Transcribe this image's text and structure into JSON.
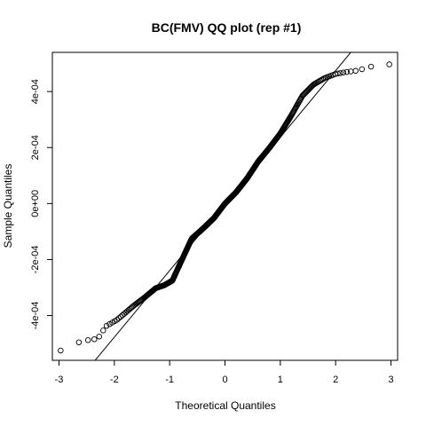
{
  "chart_data": {
    "type": "scatter",
    "title": "BC(FMV) QQ plot (rep #1)",
    "xlabel": "Theoretical Quantiles",
    "ylabel": "Sample Quantiles",
    "xlim": [
      -3.12,
      3.12
    ],
    "ylim": [
      -0.00056,
      0.00054
    ],
    "x_ticks": [
      -3,
      -2,
      -1,
      0,
      1,
      2,
      3
    ],
    "x_tick_labels": [
      "-3",
      "-2",
      "-1",
      "0",
      "1",
      "2",
      "3"
    ],
    "y_ticks": [
      -0.0004,
      -0.0002,
      0,
      0.0002,
      0.0004
    ],
    "y_tick_labels": [
      "-4e-04",
      "-2e-04",
      "0e+00",
      "2e-04",
      "4e-04"
    ],
    "reference_line": {
      "slope": 0.000238,
      "intercept": -1.3e-06
    },
    "points": {
      "n": 500,
      "x_range": [
        -2.97,
        2.97
      ],
      "anchors": [
        [
          -2.97,
          -0.000525
        ],
        [
          -2.6,
          -0.000492
        ],
        [
          -2.45,
          -0.000487
        ],
        [
          -2.3,
          -0.000483
        ],
        [
          -2.15,
          -0.000438
        ],
        [
          -1.95,
          -0.000415
        ],
        [
          -1.8,
          -0.00039
        ],
        [
          -1.65,
          -0.000365
        ],
        [
          -1.45,
          -0.000335
        ],
        [
          -1.25,
          -0.000302
        ],
        [
          -1.1,
          -0.000292
        ],
        [
          -0.95,
          -0.000275
        ],
        [
          -0.8,
          -0.00021
        ],
        [
          -0.6,
          -0.000125
        ],
        [
          -0.4,
          -9e-05
        ],
        [
          -0.2,
          -5.2e-05
        ],
        [
          0.0,
          0.0
        ],
        [
          0.2,
          4e-05
        ],
        [
          0.4,
          9e-05
        ],
        [
          0.6,
          0.00015
        ],
        [
          0.8,
          0.000198
        ],
        [
          1.0,
          0.00025
        ],
        [
          1.2,
          0.000315
        ],
        [
          1.4,
          0.000385
        ],
        [
          1.6,
          0.000425
        ],
        [
          1.8,
          0.000448
        ],
        [
          2.0,
          0.000463
        ],
        [
          2.2,
          0.00047
        ],
        [
          2.4,
          0.000475
        ],
        [
          2.6,
          0.000488
        ],
        [
          2.97,
          0.000497
        ]
      ]
    },
    "grid": false,
    "legend": "none"
  }
}
